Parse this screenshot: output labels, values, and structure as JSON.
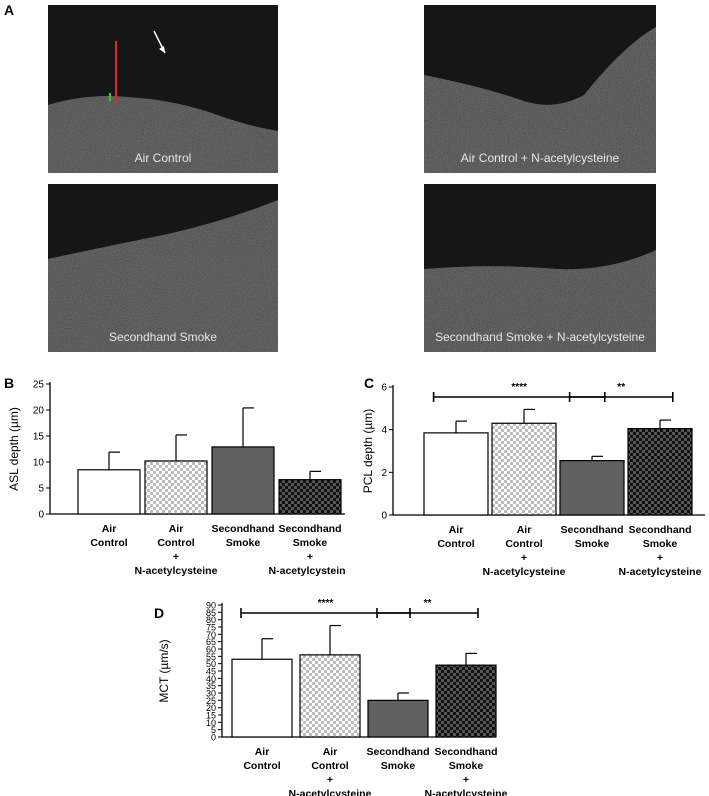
{
  "panel_a": {
    "letter": "A",
    "images": [
      {
        "label": "Air Control"
      },
      {
        "label": "Air Control + N-acetylcysteine"
      },
      {
        "label": "Secondhand Smoke"
      },
      {
        "label": "Secondhand Smoke + N-acetylcysteine"
      }
    ]
  },
  "chart_data": [
    {
      "panel": "B",
      "type": "bar",
      "categories": [
        [
          "Air",
          "Control"
        ],
        [
          "Air",
          "Control",
          "+",
          "N-acetylcysteine"
        ],
        [
          "Secondhand",
          "Smoke"
        ],
        [
          "Secondhand",
          "Smoke",
          "+",
          "N-acetylcysteine"
        ]
      ],
      "values": [
        8.5,
        10.2,
        12.9,
        6.6
      ],
      "errors": [
        3.4,
        5.0,
        7.5,
        1.6
      ],
      "fills": [
        "white",
        "checker-light",
        "#606060",
        "checker-dark"
      ],
      "ylabel": "ASL depth (µm)",
      "ylim": [
        0,
        25
      ],
      "yticks": [
        0,
        5,
        10,
        15,
        20,
        25
      ],
      "significance": []
    },
    {
      "panel": "C",
      "type": "bar",
      "categories": [
        [
          "Air",
          "Control"
        ],
        [
          "Air",
          "Control",
          "+",
          "N-acetylcysteine"
        ],
        [
          "Secondhand",
          "Smoke"
        ],
        [
          "Secondhand",
          "Smoke",
          "+",
          "N-acetylcysteine"
        ]
      ],
      "values": [
        3.85,
        4.3,
        2.55,
        4.05
      ],
      "errors": [
        0.55,
        0.65,
        0.2,
        0.4
      ],
      "fills": [
        "white",
        "checker-light",
        "#606060",
        "checker-dark"
      ],
      "ylabel": "PCL depth (µm)",
      "ylim": [
        0,
        6
      ],
      "yticks": [
        0,
        2,
        4,
        6
      ],
      "significance": [
        {
          "from": 0,
          "to": 2,
          "label": "****"
        },
        {
          "from": 2,
          "to": 3,
          "label": "**"
        }
      ]
    },
    {
      "panel": "D",
      "type": "bar",
      "categories": [
        [
          "Air",
          "Control"
        ],
        [
          "Air",
          "Control",
          "+",
          "N-acetylcysteine"
        ],
        [
          "Secondhand",
          "Smoke"
        ],
        [
          "Secondhand",
          "Smoke",
          "+",
          "N-acetylcysteine"
        ]
      ],
      "values": [
        53,
        56,
        25,
        49
      ],
      "errors": [
        14,
        20,
        5,
        8
      ],
      "fills": [
        "white",
        "checker-light",
        "#606060",
        "checker-dark"
      ],
      "ylabel": "MCT (µm/s)",
      "ylim": [
        0,
        90
      ],
      "yticks": [
        0,
        5,
        10,
        15,
        20,
        25,
        30,
        35,
        40,
        45,
        50,
        55,
        60,
        65,
        70,
        75,
        80,
        85,
        90
      ],
      "significance": [
        {
          "from": 0,
          "to": 2,
          "label": "****"
        },
        {
          "from": 2,
          "to": 3,
          "label": "**"
        }
      ]
    }
  ]
}
